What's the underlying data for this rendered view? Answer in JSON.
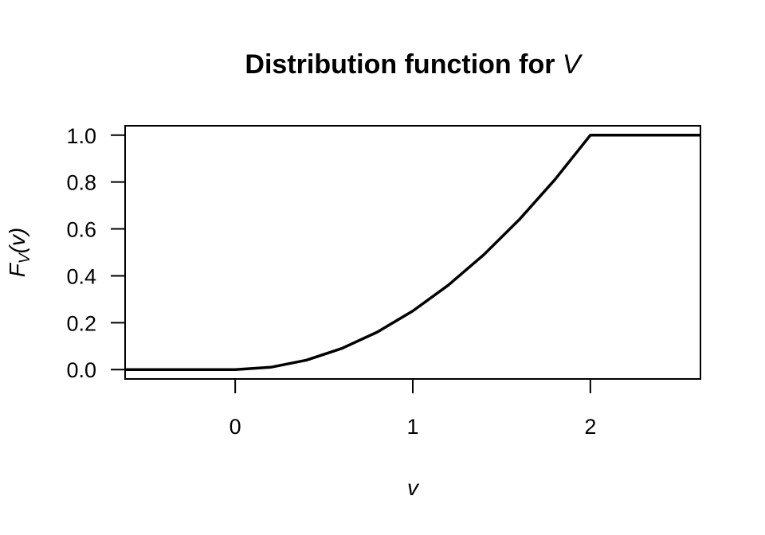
{
  "chart_data": {
    "type": "line",
    "title": "Distribution function for ",
    "title_var": "V",
    "xlabel": "v",
    "ylabel": {
      "main": "F",
      "sub": "V",
      "open": "(",
      "arg": "v",
      "close": ")"
    },
    "xlim": [
      -0.62,
      2.62
    ],
    "ylim": [
      -0.04,
      1.04
    ],
    "xticks": [
      {
        "value": 0,
        "label": "0"
      },
      {
        "value": 1,
        "label": "1"
      },
      {
        "value": 2,
        "label": "2"
      }
    ],
    "yticks": [
      {
        "value": 0.0,
        "label": "0.0"
      },
      {
        "value": 0.2,
        "label": "0.2"
      },
      {
        "value": 0.4,
        "label": "0.4"
      },
      {
        "value": 0.6,
        "label": "0.6"
      },
      {
        "value": 0.8,
        "label": "0.8"
      },
      {
        "value": 1.0,
        "label": "1.0"
      }
    ],
    "grid": false,
    "legend": "none",
    "line_color": "#000000",
    "series": [
      {
        "x": [
          -0.62,
          0,
          0.2,
          0.4,
          0.6,
          0.8,
          1.0,
          1.2,
          1.4,
          1.6,
          1.8,
          2.0,
          2.62
        ],
        "y": [
          0,
          0,
          0.01,
          0.04,
          0.09,
          0.16,
          0.25,
          0.36,
          0.49,
          0.64,
          0.81,
          1.0,
          1.0
        ]
      }
    ]
  }
}
